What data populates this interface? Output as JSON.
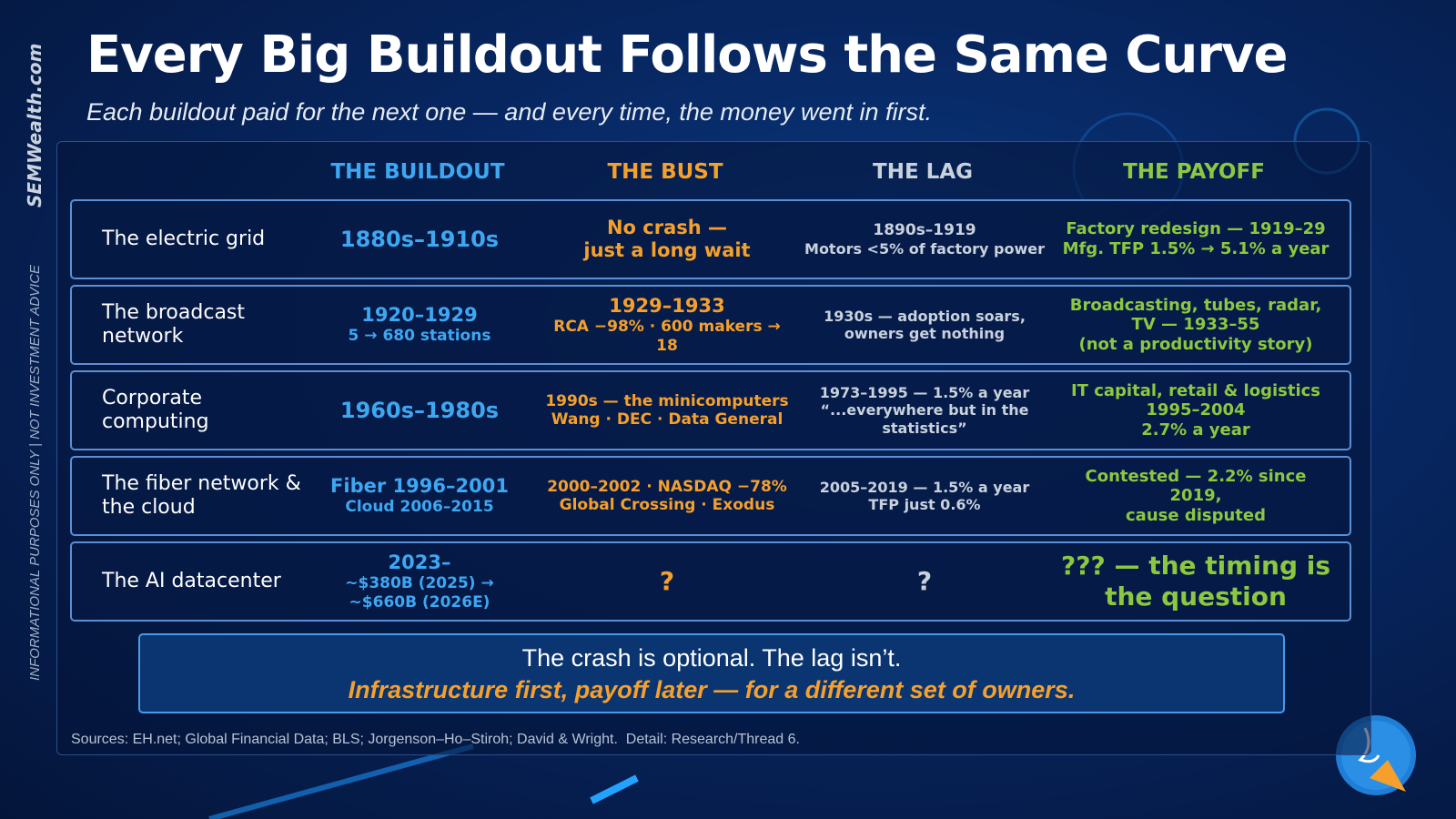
{
  "header": {
    "title": "Every Big Buildout Follows the Same Curve",
    "subtitle": "Each buildout paid for the next one — and every time, the money went in first."
  },
  "side": {
    "brand": "SEMWealth.com",
    "disclaimer": "INFORMATIONAL PURPOSES ONLY | NOT INVESTMENT ADVICE"
  },
  "table": {
    "columns": [
      "THE BUILDOUT",
      "THE BUST",
      "THE LAG",
      "THE PAYOFF"
    ],
    "rows": [
      {
        "label": "The electric grid",
        "buildout": [
          "1880s–1910s"
        ],
        "bust": [
          "No crash —",
          "just a long wait"
        ],
        "lag": [
          "1890s–1919",
          "Motors <5% of factory power"
        ],
        "payoff": [
          "Factory redesign — 1919–29",
          "Mfg. TFP 1.5% → 5.1% a year"
        ]
      },
      {
        "label": "The broadcast network",
        "buildout": [
          "1920–1929",
          "5 → 680 stations"
        ],
        "bust": [
          "1929–1933",
          "RCA −98% · 600 makers → 18"
        ],
        "lag": [
          "1930s — adoption soars,",
          "owners get nothing"
        ],
        "payoff": [
          "Broadcasting, tubes, radar, TV — 1933–55",
          "(not a productivity story)"
        ]
      },
      {
        "label": "Corporate computing",
        "buildout": [
          "1960s–1980s"
        ],
        "bust": [
          "1990s — the minicomputers",
          "Wang · DEC · Data General"
        ],
        "lag": [
          "1973–1995 — 1.5% a year",
          "“...everywhere but in the statistics”"
        ],
        "payoff": [
          "IT capital, retail & logistics",
          "1995–2004",
          "2.7% a year"
        ]
      },
      {
        "label": "The fiber network & the cloud",
        "buildout": [
          "Fiber 1996–2001",
          "Cloud 2006–2015"
        ],
        "bust": [
          "2000–2002 · NASDAQ −78%",
          "Global Crossing · Exodus"
        ],
        "lag": [
          "2005–2019 — 1.5% a year",
          "TFP just 0.6%"
        ],
        "payoff": [
          "Contested — 2.2% since 2019,",
          "cause disputed"
        ]
      },
      {
        "label": "The AI datacenter",
        "buildout": [
          "2023–",
          "~$380B (2025) →",
          "~$660B (2026E)"
        ],
        "bust": [
          "?"
        ],
        "lag": [
          "?"
        ],
        "payoff": [
          "??? — the timing is the question"
        ]
      }
    ]
  },
  "callout": {
    "line1": "The crash is optional. The lag isn’t.",
    "line2": "Infrastructure first, payoff later — for a different set of owners."
  },
  "footer": {
    "sources": "Sources: EH.net; Global Financial Data; BLS; Jorgenson–Ho–Stiroh; David & Wright.  Detail: Research/Thread 6."
  }
}
